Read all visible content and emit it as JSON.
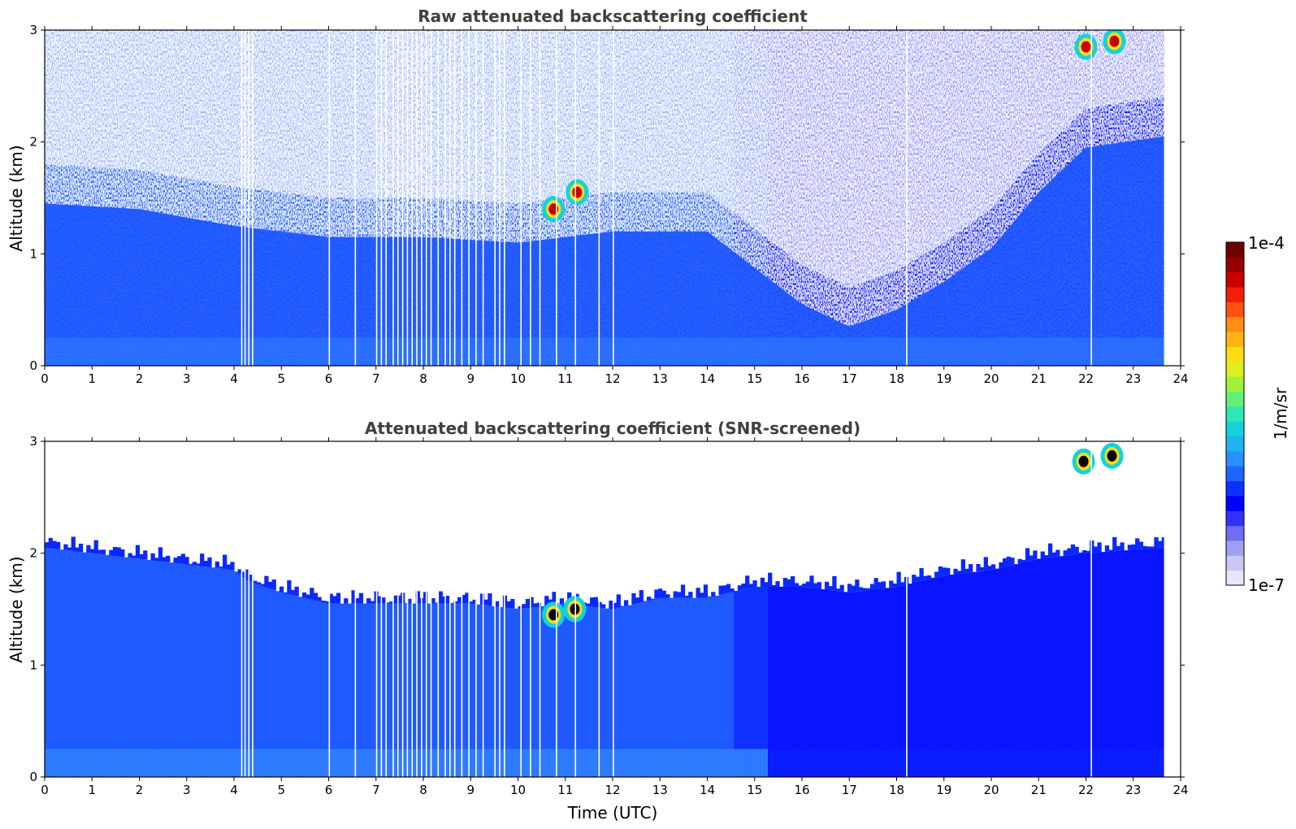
{
  "chart_data": [
    {
      "type": "heatmap",
      "title": "Raw attenuated backscattering coefficient",
      "xlabel": "",
      "ylabel": "Altitude (km)",
      "x_ticks": [
        "0",
        "1",
        "2",
        "3",
        "4",
        "5",
        "6",
        "7",
        "8",
        "9",
        "10",
        "11",
        "12",
        "13",
        "14",
        "15",
        "16",
        "17",
        "18",
        "19",
        "20",
        "21",
        "22",
        "23",
        "24"
      ],
      "y_ticks": [
        "0",
        "1",
        "2",
        "3"
      ],
      "xlim": [
        0,
        24
      ],
      "ylim": [
        0,
        3
      ],
      "data_extent_hours": [
        0,
        23.65
      ],
      "noise_top_km": [
        [
          0,
          1.8
        ],
        [
          2,
          1.75
        ],
        [
          4,
          1.6
        ],
        [
          6,
          1.5
        ],
        [
          8,
          1.5
        ],
        [
          10,
          1.45
        ],
        [
          12,
          1.55
        ],
        [
          14,
          1.55
        ],
        [
          16,
          0.9
        ],
        [
          17,
          0.7
        ],
        [
          18,
          0.85
        ],
        [
          19,
          1.1
        ],
        [
          20,
          1.4
        ],
        [
          21,
          1.9
        ],
        [
          22,
          2.3
        ],
        [
          23.65,
          2.4
        ]
      ],
      "features": [
        {
          "kind": "cloud",
          "time": 10.75,
          "alt": 1.4,
          "level": "high"
        },
        {
          "kind": "cloud",
          "time": 11.25,
          "alt": 1.55,
          "level": "high"
        },
        {
          "kind": "cloud",
          "time": 22.0,
          "alt": 2.85,
          "level": "high"
        },
        {
          "kind": "cloud",
          "time": 22.6,
          "alt": 2.9,
          "level": "high"
        }
      ],
      "gaps_hours": [
        4.15,
        4.22,
        4.3,
        4.38,
        6.0,
        6.55,
        7.0,
        7.1,
        7.2,
        7.35,
        7.45,
        7.55,
        7.65,
        7.75,
        7.85,
        7.95,
        8.05,
        8.15,
        8.3,
        8.45,
        8.55,
        8.65,
        8.8,
        8.95,
        9.1,
        9.25,
        9.5,
        9.6,
        9.7,
        10.05,
        10.25,
        10.45,
        10.8,
        11.2,
        11.7,
        12.0,
        18.2,
        22.1
      ]
    },
    {
      "type": "heatmap",
      "title": "Attenuated backscattering coefficient (SNR-screened)",
      "xlabel": "Time (UTC)",
      "ylabel": "Altitude (km)",
      "x_ticks": [
        "0",
        "1",
        "2",
        "3",
        "4",
        "5",
        "6",
        "7",
        "8",
        "9",
        "10",
        "11",
        "12",
        "13",
        "14",
        "15",
        "16",
        "17",
        "18",
        "19",
        "20",
        "21",
        "22",
        "23",
        "24"
      ],
      "y_ticks": [
        "0",
        "1",
        "2",
        "3"
      ],
      "xlim": [
        0,
        24
      ],
      "ylim": [
        0,
        3
      ],
      "data_extent_hours": [
        0,
        23.65
      ],
      "layer_top_km": [
        [
          0,
          2.05
        ],
        [
          1,
          2.0
        ],
        [
          2,
          1.95
        ],
        [
          3,
          1.9
        ],
        [
          4,
          1.85
        ],
        [
          4.3,
          1.75
        ],
        [
          5,
          1.65
        ],
        [
          6,
          1.55
        ],
        [
          7,
          1.55
        ],
        [
          8,
          1.55
        ],
        [
          9,
          1.55
        ],
        [
          10,
          1.5
        ],
        [
          11,
          1.55
        ],
        [
          12,
          1.5
        ],
        [
          13,
          1.6
        ],
        [
          14,
          1.6
        ],
        [
          15,
          1.7
        ],
        [
          16,
          1.7
        ],
        [
          17,
          1.65
        ],
        [
          18,
          1.7
        ],
        [
          19,
          1.8
        ],
        [
          20,
          1.85
        ],
        [
          21,
          1.95
        ],
        [
          22,
          2.0
        ],
        [
          23.65,
          2.05
        ]
      ],
      "features": [
        {
          "kind": "cloud",
          "time": 10.75,
          "alt": 1.45,
          "level": "high"
        },
        {
          "kind": "cloud",
          "time": 11.2,
          "alt": 1.5,
          "level": "high"
        },
        {
          "kind": "cloud",
          "time": 21.95,
          "alt": 2.82,
          "level": "high"
        },
        {
          "kind": "cloud",
          "time": 22.55,
          "alt": 2.87,
          "level": "high"
        }
      ],
      "gaps_hours": [
        4.15,
        4.22,
        4.3,
        4.38,
        6.0,
        6.55,
        7.0,
        7.1,
        7.2,
        7.35,
        7.45,
        7.55,
        7.65,
        7.75,
        7.85,
        7.95,
        8.05,
        8.15,
        8.3,
        8.45,
        8.55,
        8.65,
        8.8,
        8.95,
        9.1,
        9.25,
        9.5,
        9.6,
        9.7,
        10.05,
        10.25,
        10.45,
        10.8,
        11.2,
        11.7,
        12.0,
        18.2,
        22.1
      ]
    }
  ],
  "colorbar": {
    "label": "1/m/sr",
    "max_label": "1e-4",
    "min_label": "1e-7",
    "scale": "log",
    "range": [
      1e-07,
      0.0001
    ],
    "colors": [
      "#e6e6fa",
      "#c8c8f5",
      "#a0a0f0",
      "#6e6ef0",
      "#3232ff",
      "#0000ff",
      "#0a32ff",
      "#1e64ff",
      "#2891ff",
      "#1eb4f0",
      "#14d2dc",
      "#32e6b4",
      "#64f078",
      "#a0f03c",
      "#dcf01e",
      "#ffdc14",
      "#ffb414",
      "#ff8c14",
      "#ff5014",
      "#f01e0a",
      "#c80000",
      "#960000",
      "#6e0000"
    ]
  }
}
